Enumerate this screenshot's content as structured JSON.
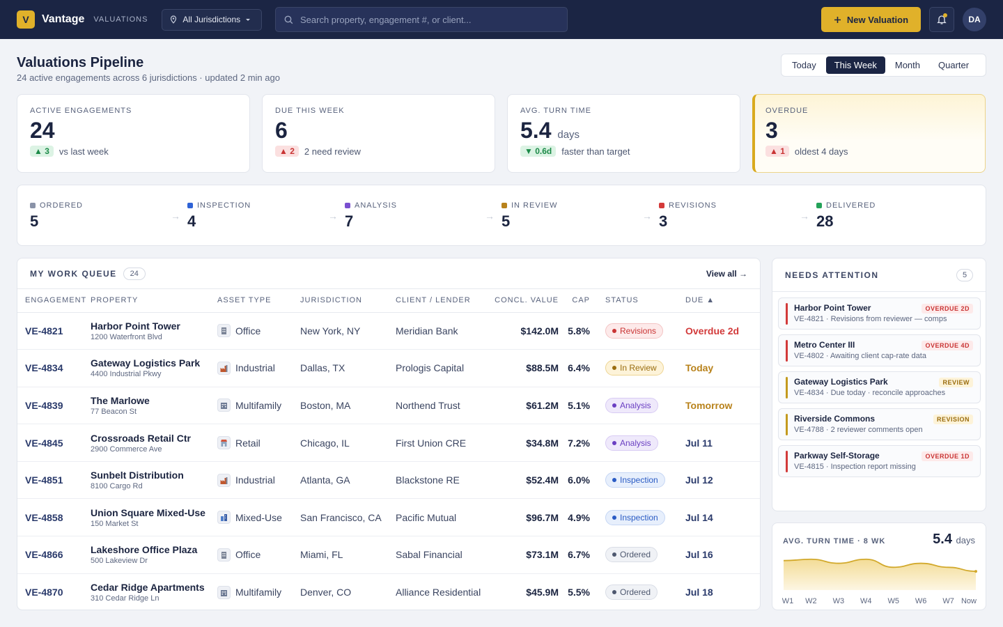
{
  "topbar": {
    "logo_letter": "V",
    "brand": "Vantage",
    "section": "VALUATIONS",
    "jurisdiction": "All Jurisdictions",
    "search_placeholder": "Search property, engagement #, or client...",
    "new_button": "New Valuation",
    "avatar": "DA",
    "accent": "#e0b12a"
  },
  "header": {
    "title": "Valuations Pipeline",
    "subtitle": "24 active engagements across 6 jurisdictions · updated 2 min ago",
    "ranges": [
      "Today",
      "This Week",
      "Month",
      "Quarter"
    ],
    "active_range": "This Week"
  },
  "kpis": [
    {
      "label": "ACTIVE ENGAGEMENTS",
      "value": "24",
      "unit": "",
      "delta": "▲ 3",
      "delta_tone": "green",
      "note": "vs last week"
    },
    {
      "label": "DUE THIS WEEK",
      "value": "6",
      "unit": "",
      "delta": "▲ 2",
      "delta_tone": "red",
      "note": "2 need review"
    },
    {
      "label": "AVG. TURN TIME",
      "value": "5.4",
      "unit": "days",
      "delta": "▼ 0.6d",
      "delta_tone": "green",
      "note": "faster than target"
    },
    {
      "label": "OVERDUE",
      "value": "3",
      "unit": "",
      "delta": "▲ 1",
      "delta_tone": "red",
      "note": "oldest 4 days"
    }
  ],
  "pipeline": [
    {
      "label": "ORDERED",
      "count": "5",
      "color": "#8a93a8"
    },
    {
      "label": "INSPECTION",
      "count": "4",
      "color": "#2f63d6"
    },
    {
      "label": "ANALYSIS",
      "count": "7",
      "color": "#7a4fd0"
    },
    {
      "label": "IN REVIEW",
      "count": "5",
      "color": "#b8821b"
    },
    {
      "label": "REVISIONS",
      "count": "3",
      "color": "#d43a3a"
    },
    {
      "label": "DELIVERED",
      "count": "28",
      "color": "#24a259"
    }
  ],
  "queue": {
    "title": "MY WORK QUEUE",
    "count": "24",
    "view_all": "View all →",
    "columns": [
      "ENGAGEMENT",
      "PROPERTY",
      "ASSET TYPE",
      "JURISDICTION",
      "CLIENT / LENDER",
      "CONCL. VALUE",
      "CAP",
      "STATUS",
      "DUE ▲"
    ],
    "rows": [
      {
        "id": "VE-4821",
        "name": "Harbor Point Tower",
        "addr": "1200 Waterfront Blvd",
        "asset": "Office",
        "icon": "office-icon",
        "juris": "New York, NY",
        "client": "Meridian Bank",
        "value": "$142.0M",
        "cap": "5.8%",
        "status": "Revisions",
        "status_tone": "red",
        "due": "Overdue 2d",
        "due_tone": "red"
      },
      {
        "id": "VE-4834",
        "name": "Gateway Logistics Park",
        "addr": "4400 Industrial Pkwy",
        "asset": "Industrial",
        "icon": "industrial-icon",
        "juris": "Dallas, TX",
        "client": "Prologis Capital",
        "value": "$88.5M",
        "cap": "6.4%",
        "status": "In Review",
        "status_tone": "amber",
        "due": "Today",
        "due_tone": "amber"
      },
      {
        "id": "VE-4839",
        "name": "The Marlowe",
        "addr": "77 Beacon St",
        "asset": "Multifamily",
        "icon": "multifamily-icon",
        "juris": "Boston, MA",
        "client": "Northend Trust",
        "value": "$61.2M",
        "cap": "5.1%",
        "status": "Analysis",
        "status_tone": "purple",
        "due": "Tomorrow",
        "due_tone": "amber"
      },
      {
        "id": "VE-4845",
        "name": "Crossroads Retail Ctr",
        "addr": "2900 Commerce Ave",
        "asset": "Retail",
        "icon": "retail-icon",
        "juris": "Chicago, IL",
        "client": "First Union CRE",
        "value": "$34.8M",
        "cap": "7.2%",
        "status": "Analysis",
        "status_tone": "purple",
        "due": "Jul 11",
        "due_tone": "navy"
      },
      {
        "id": "VE-4851",
        "name": "Sunbelt Distribution",
        "addr": "8100 Cargo Rd",
        "asset": "Industrial",
        "icon": "industrial-icon",
        "juris": "Atlanta, GA",
        "client": "Blackstone RE",
        "value": "$52.4M",
        "cap": "6.0%",
        "status": "Inspection",
        "status_tone": "blue",
        "due": "Jul 12",
        "due_tone": "navy"
      },
      {
        "id": "VE-4858",
        "name": "Union Square Mixed-Use",
        "addr": "150 Market St",
        "asset": "Mixed-Use",
        "icon": "mixed-use-icon",
        "juris": "San Francisco, CA",
        "client": "Pacific Mutual",
        "value": "$96.7M",
        "cap": "4.9%",
        "status": "Inspection",
        "status_tone": "blue",
        "due": "Jul 14",
        "due_tone": "navy"
      },
      {
        "id": "VE-4866",
        "name": "Lakeshore Office Plaza",
        "addr": "500 Lakeview Dr",
        "asset": "Office",
        "icon": "office-icon",
        "juris": "Miami, FL",
        "client": "Sabal Financial",
        "value": "$73.1M",
        "cap": "6.7%",
        "status": "Ordered",
        "status_tone": "gray",
        "due": "Jul 16",
        "due_tone": "navy"
      },
      {
        "id": "VE-4870",
        "name": "Cedar Ridge Apartments",
        "addr": "310 Cedar Ridge Ln",
        "asset": "Multifamily",
        "icon": "multifamily-icon",
        "juris": "Denver, CO",
        "client": "Alliance Residential",
        "value": "$45.9M",
        "cap": "5.5%",
        "status": "Ordered",
        "status_tone": "gray",
        "due": "Jul 18",
        "due_tone": "navy"
      }
    ]
  },
  "attention": {
    "title": "NEEDS ATTENTION",
    "count": "5",
    "items": [
      {
        "name": "Harbor Point Tower",
        "detail": "VE-4821 · Revisions from reviewer — comps",
        "tag": "OVERDUE 2D",
        "tone": "red"
      },
      {
        "name": "Metro Center III",
        "detail": "VE-4802 · Awaiting client cap-rate data",
        "tag": "OVERDUE 4D",
        "tone": "red"
      },
      {
        "name": "Gateway Logistics Park",
        "detail": "VE-4834 · Due today · reconcile approaches",
        "tag": "REVIEW",
        "tone": "amber"
      },
      {
        "name": "Riverside Commons",
        "detail": "VE-4788 · 2 reviewer comments open",
        "tag": "REVISION",
        "tone": "amber"
      },
      {
        "name": "Parkway Self-Storage",
        "detail": "VE-4815 · Inspection report missing",
        "tag": "OVERDUE 1D",
        "tone": "red"
      }
    ]
  },
  "chart_data": {
    "type": "area",
    "title": "AVG. TURN TIME · 8 WK",
    "headline_value": "5.4",
    "headline_unit": "days",
    "categories": [
      "W1",
      "W2",
      "W3",
      "W4",
      "W5",
      "W6",
      "W7",
      "Now"
    ],
    "values": [
      6.2,
      6.3,
      6.0,
      6.3,
      5.7,
      6.0,
      5.7,
      5.4
    ],
    "ylim": [
      4.0,
      6.6
    ],
    "grid": false,
    "color": "#d2a92c"
  }
}
